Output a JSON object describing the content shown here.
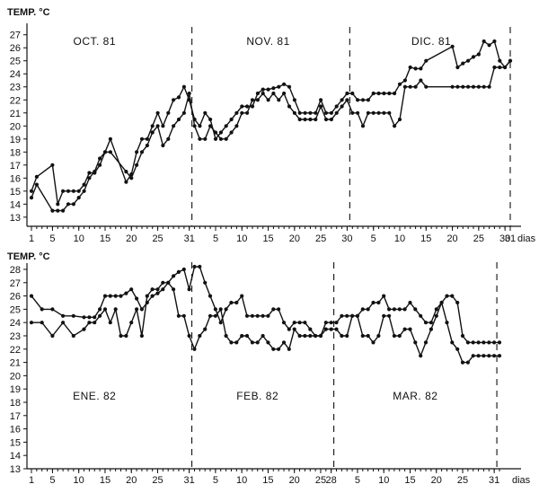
{
  "chart_data": [
    {
      "type": "line",
      "ylabel": "TEMP. °C",
      "xunit": "dias",
      "yticks": [
        13,
        14,
        15,
        16,
        17,
        18,
        19,
        20,
        21,
        22,
        23,
        24,
        25,
        26,
        27
      ],
      "ylim": [
        12.3,
        27.6
      ],
      "xticks": [
        {
          "day": 1,
          "label": "1"
        },
        {
          "day": 5,
          "label": "5"
        },
        {
          "day": 10,
          "label": "10"
        },
        {
          "day": 15,
          "label": "15"
        },
        {
          "day": 20,
          "label": "20"
        },
        {
          "day": 25,
          "label": "25"
        },
        {
          "day": 31,
          "label": "31"
        },
        {
          "day": 36,
          "label": "5"
        },
        {
          "day": 41,
          "label": "10"
        },
        {
          "day": 46,
          "label": "15"
        },
        {
          "day": 51,
          "label": "20"
        },
        {
          "day": 56,
          "label": "25"
        },
        {
          "day": 61,
          "label": "30"
        },
        {
          "day": 66,
          "label": "5"
        },
        {
          "day": 71,
          "label": "10"
        },
        {
          "day": 76,
          "label": "15"
        },
        {
          "day": 81,
          "label": "20"
        },
        {
          "day": 86,
          "label": "25"
        },
        {
          "day": 91,
          "label": "30"
        },
        {
          "day": 92,
          "label": "31"
        }
      ],
      "xlim": [
        1,
        92
      ],
      "grid": false,
      "month_labels": [
        {
          "text": "OCT. 81",
          "day": 13
        },
        {
          "text": "NOV. 81",
          "day": 46
        },
        {
          "text": "DIC. 81",
          "day": 77
        }
      ],
      "month_dividers": [
        31.5,
        61.5,
        92
      ],
      "series": [
        {
          "x": [
            1,
            2,
            5,
            6,
            7,
            8,
            9,
            10,
            11,
            12,
            13,
            14,
            15,
            16,
            19,
            20,
            21,
            22,
            23,
            24,
            25,
            26,
            27,
            28,
            29,
            30,
            31,
            32,
            33,
            34,
            35,
            36,
            37,
            38,
            39,
            40,
            41,
            42,
            43,
            44,
            45,
            46,
            47,
            48,
            49,
            50,
            51,
            52,
            53,
            54,
            55,
            56,
            57,
            58,
            59,
            60,
            61,
            62,
            63,
            64,
            65,
            66,
            67,
            68,
            69,
            70,
            71,
            72,
            73,
            74,
            75,
            76,
            81,
            82,
            83,
            84,
            85,
            86,
            87,
            88,
            89,
            90,
            91,
            92
          ],
          "values": [
            15.0,
            16.1,
            17.0,
            14.0,
            15.0,
            15.0,
            15.0,
            15.0,
            15.5,
            16.4,
            16.4,
            17.0,
            18.0,
            19.0,
            15.7,
            16.3,
            18.0,
            19.0,
            19.0,
            20.0,
            21.0,
            20.0,
            21.0,
            22.0,
            22.2,
            23.0,
            22.0,
            20.5,
            20.0,
            21.0,
            20.5,
            19.0,
            19.5,
            20.0,
            20.5,
            21.0,
            21.5,
            21.5,
            21.5,
            22.5,
            22.8,
            22.8,
            22.9,
            23.0,
            23.2,
            23.0,
            22.0,
            21.0,
            21.0,
            21.0,
            21.0,
            22.0,
            21.0,
            21.0,
            21.5,
            22.0,
            22.5,
            22.5,
            22.0,
            22.0,
            22.0,
            22.5,
            22.5,
            22.5,
            22.5,
            22.5,
            23.2,
            23.5,
            24.5,
            24.4,
            24.4,
            25.0,
            26.1,
            24.5,
            24.8,
            25.0,
            25.3,
            25.5,
            26.5,
            26.2,
            26.5,
            25.0,
            24.5,
            25.0
          ]
        },
        {
          "x": [
            1,
            2,
            5,
            6,
            7,
            8,
            9,
            10,
            11,
            12,
            13,
            14,
            15,
            16,
            19,
            20,
            21,
            22,
            23,
            24,
            25,
            26,
            27,
            28,
            29,
            30,
            31,
            32,
            33,
            34,
            35,
            36,
            37,
            38,
            39,
            40,
            41,
            42,
            43,
            44,
            45,
            46,
            47,
            48,
            49,
            50,
            51,
            52,
            53,
            54,
            55,
            56,
            57,
            58,
            59,
            60,
            61,
            62,
            63,
            64,
            65,
            66,
            67,
            68,
            69,
            70,
            71,
            72,
            73,
            74,
            75,
            76,
            81,
            82,
            83,
            84,
            85,
            86,
            87,
            88,
            89,
            90,
            91,
            92
          ],
          "values": [
            14.5,
            15.5,
            13.5,
            13.5,
            13.5,
            14.0,
            14.0,
            14.5,
            15.0,
            16.0,
            16.5,
            17.5,
            18.0,
            18.0,
            16.5,
            16.0,
            17.0,
            18.0,
            18.5,
            19.5,
            20.0,
            18.5,
            19.0,
            20.0,
            20.5,
            21.0,
            22.5,
            20.0,
            19.0,
            19.0,
            20.0,
            19.5,
            19.0,
            19.0,
            19.5,
            20.0,
            21.0,
            21.0,
            22.0,
            22.0,
            22.5,
            22.0,
            22.5,
            22.0,
            22.5,
            21.5,
            21.0,
            20.5,
            20.5,
            20.5,
            20.5,
            21.5,
            20.5,
            20.5,
            21.0,
            21.5,
            22.0,
            21.0,
            21.0,
            20.0,
            21.0,
            21.0,
            21.0,
            21.0,
            21.0,
            20.0,
            20.5,
            23.0,
            23.0,
            23.0,
            23.5,
            23.0,
            23.0,
            23.0,
            23.0,
            23.0,
            23.0,
            23.0,
            23.0,
            23.0,
            24.5,
            24.5,
            24.5,
            25.0
          ]
        }
      ]
    },
    {
      "type": "line",
      "ylabel": "TEMP. °C",
      "xunit": "dias",
      "yticks": [
        13,
        14,
        15,
        16,
        17,
        18,
        19,
        20,
        21,
        22,
        23,
        24,
        25,
        26,
        27,
        28
      ],
      "ylim": [
        13,
        28.2
      ],
      "xticks": [
        {
          "day": 1,
          "label": "1"
        },
        {
          "day": 5,
          "label": "5"
        },
        {
          "day": 10,
          "label": "10"
        },
        {
          "day": 15,
          "label": "15"
        },
        {
          "day": 20,
          "label": "20"
        },
        {
          "day": 25,
          "label": "25"
        },
        {
          "day": 31,
          "label": "31"
        },
        {
          "day": 36,
          "label": "5"
        },
        {
          "day": 41,
          "label": "10"
        },
        {
          "day": 46,
          "label": "15"
        },
        {
          "day": 51,
          "label": "20"
        },
        {
          "day": 56,
          "label": "25"
        },
        {
          "day": 58,
          "label": "28"
        },
        {
          "day": 63,
          "label": "5"
        },
        {
          "day": 68,
          "label": "10"
        },
        {
          "day": 73,
          "label": "15"
        },
        {
          "day": 78,
          "label": "20"
        },
        {
          "day": 83,
          "label": "25"
        },
        {
          "day": 89,
          "label": "31"
        }
      ],
      "xlim": [
        1,
        90
      ],
      "grid": false,
      "month_labels": [
        {
          "text": "ENE. 82",
          "day": 13
        },
        {
          "text": "FEB. 82",
          "day": 44
        },
        {
          "text": "MAR. 82",
          "day": 74
        }
      ],
      "month_dividers": [
        31.5,
        58.5,
        89.5
      ],
      "series": [
        {
          "x": [
            1,
            3,
            5,
            7,
            9,
            11,
            12,
            13,
            14,
            15,
            16,
            17,
            18,
            19,
            20,
            21,
            22,
            23,
            24,
            25,
            26,
            27,
            28,
            29,
            30,
            31,
            32,
            33,
            34,
            35,
            36,
            37,
            38,
            39,
            40,
            41,
            42,
            43,
            44,
            45,
            46,
            47,
            48,
            49,
            50,
            51,
            52,
            53,
            54,
            55,
            56,
            57,
            58,
            59,
            60,
            61,
            62,
            63,
            64,
            65,
            66,
            67,
            68,
            69,
            70,
            71,
            72,
            73,
            74,
            75,
            76,
            77,
            78,
            79,
            80,
            81,
            82,
            83,
            84,
            85,
            86,
            87,
            88,
            89,
            90
          ],
          "values": [
            26.0,
            25.0,
            25.0,
            24.5,
            24.5,
            24.4,
            24.4,
            24.4,
            25.0,
            26.0,
            26.0,
            26.0,
            26.0,
            26.2,
            26.5,
            25.8,
            25.0,
            25.5,
            26.0,
            26.2,
            26.5,
            27.0,
            27.5,
            27.8,
            28.0,
            26.5,
            28.2,
            28.2,
            27.0,
            26.0,
            25.0,
            24.0,
            25.0,
            25.5,
            25.5,
            26.0,
            24.5,
            24.5,
            24.5,
            24.5,
            24.5,
            25.0,
            25.0,
            24.0,
            23.5,
            24.0,
            24.0,
            24.0,
            23.5,
            23.0,
            23.0,
            24.0,
            24.0,
            24.0,
            24.5,
            24.5,
            24.5,
            24.5,
            25.0,
            25.0,
            25.5,
            25.5,
            26.0,
            25.0,
            25.0,
            25.0,
            25.0,
            25.5,
            25.0,
            24.5,
            24.0,
            24.0,
            25.0,
            25.5,
            26.0,
            26.0,
            25.5,
            23.0,
            22.5,
            22.5,
            22.5,
            22.5,
            22.5,
            22.5,
            22.5
          ]
        },
        {
          "x": [
            1,
            3,
            5,
            7,
            9,
            11,
            12,
            13,
            14,
            15,
            16,
            17,
            18,
            19,
            20,
            21,
            22,
            23,
            24,
            25,
            26,
            27,
            28,
            29,
            30,
            31,
            32,
            33,
            34,
            35,
            36,
            37,
            38,
            39,
            40,
            41,
            42,
            43,
            44,
            45,
            46,
            47,
            48,
            49,
            50,
            51,
            52,
            53,
            54,
            55,
            56,
            57,
            58,
            59,
            60,
            61,
            62,
            63,
            64,
            65,
            66,
            67,
            68,
            69,
            70,
            71,
            72,
            73,
            74,
            75,
            76,
            77,
            78,
            79,
            80,
            81,
            82,
            83,
            84,
            85,
            86,
            87,
            88,
            89,
            90
          ],
          "values": [
            24.0,
            24.0,
            23.0,
            24.0,
            23.0,
            23.5,
            24.0,
            24.0,
            24.5,
            25.0,
            24.0,
            25.0,
            23.0,
            23.0,
            24.0,
            25.0,
            23.0,
            26.0,
            26.5,
            26.5,
            27.0,
            27.0,
            26.5,
            24.5,
            24.5,
            23.0,
            22.0,
            23.0,
            23.5,
            24.5,
            24.5,
            25.0,
            23.0,
            22.5,
            22.5,
            23.0,
            23.0,
            22.5,
            22.5,
            23.0,
            22.5,
            22.0,
            22.0,
            22.5,
            22.0,
            23.5,
            23.0,
            23.0,
            23.0,
            23.0,
            23.0,
            23.5,
            23.5,
            23.5,
            23.0,
            23.0,
            24.5,
            24.5,
            23.0,
            23.0,
            22.5,
            23.0,
            24.5,
            24.5,
            23.0,
            23.0,
            23.5,
            23.5,
            22.5,
            21.5,
            22.5,
            23.5,
            24.5,
            25.5,
            24.0,
            22.5,
            22.0,
            21.0,
            21.0,
            21.5,
            21.5,
            21.5,
            21.5,
            21.5,
            21.5
          ]
        }
      ]
    }
  ]
}
